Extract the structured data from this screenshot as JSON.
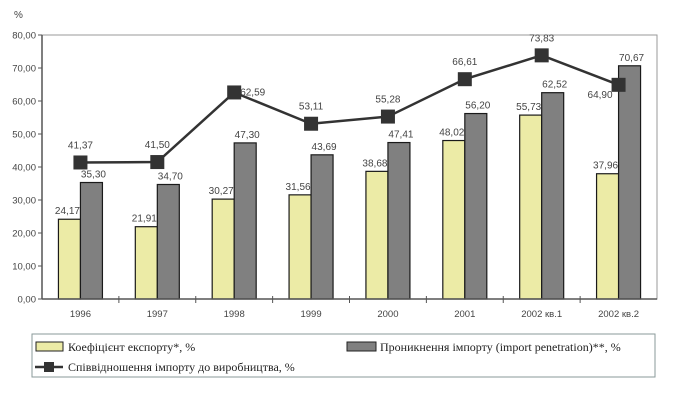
{
  "chart_data": {
    "type": "bar",
    "title": "",
    "ylabel": "%",
    "xlabel": "",
    "ylim": [
      0,
      80
    ],
    "yticks": [
      "0,00",
      "10,00",
      "20,00",
      "30,00",
      "40,00",
      "50,00",
      "60,00",
      "70,00",
      "80,00"
    ],
    "categories": [
      "1996",
      "1997",
      "1998",
      "1999",
      "2000",
      "2001",
      "2002 кв.1",
      "2002 кв.2"
    ],
    "series": [
      {
        "name": "Коефіцієнт експорту*, %",
        "kind": "bar",
        "color": "#ECEBA6",
        "values": [
          24.17,
          21.91,
          30.27,
          31.56,
          38.68,
          48.02,
          55.73,
          37.96
        ],
        "labels": [
          "24,17",
          "21,91",
          "30,27",
          "31,56",
          "38,68",
          "48,02",
          "55,73",
          "37,96"
        ]
      },
      {
        "name": "Проникнення імпорту (import penetration)**, %",
        "kind": "bar",
        "color": "#808080",
        "values": [
          35.3,
          34.7,
          47.3,
          43.69,
          47.41,
          56.2,
          62.52,
          70.67
        ],
        "labels": [
          "35,30",
          "34,70",
          "47,30",
          "43,69",
          "47,41",
          "56,20",
          "62,52",
          "70,67"
        ]
      },
      {
        "name": "Співвідношення імпорту до виробництва, %",
        "kind": "line",
        "color": "#333333",
        "values": [
          41.37,
          41.5,
          62.59,
          53.11,
          55.28,
          66.61,
          73.83,
          64.9
        ],
        "labels": [
          "41,37",
          "41,50",
          "62,59",
          "53,11",
          "55,28",
          "66,61",
          "73,83",
          "64,90"
        ]
      }
    ],
    "grid": false,
    "legend_position": "bottom"
  }
}
